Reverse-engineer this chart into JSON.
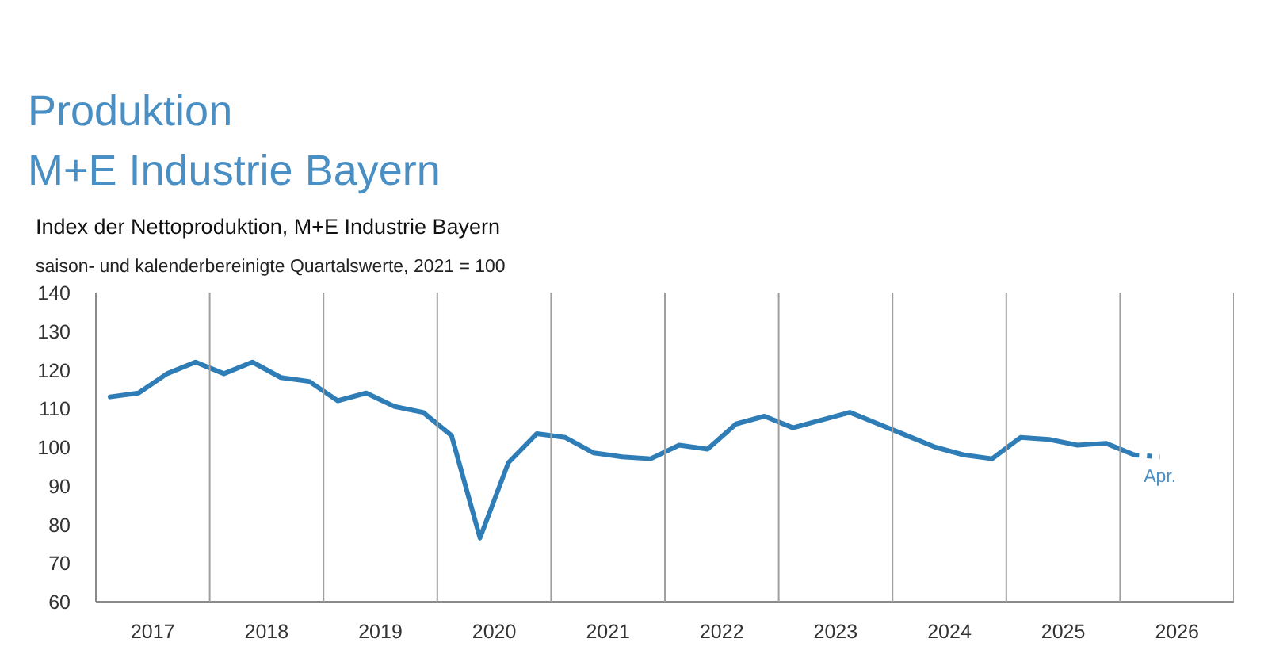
{
  "chart_data": {
    "type": "line",
    "title": "Produktion\nM+E Industrie Bayern",
    "subtitle": "Index der Nettoproduktion, M+E Industrie Bayern",
    "annotations": [
      "saison- und kalenderbereinigte Quartalswerte, 2021 = 100",
      {
        "text": "Apr.",
        "x": 2026.35,
        "y": 97.5
      }
    ],
    "xlim": [
      2017,
      2027
    ],
    "xticks": [
      {
        "value": 2017.5,
        "label": "2017"
      },
      {
        "value": 2018.5,
        "label": "2018"
      },
      {
        "value": 2019.5,
        "label": "2019"
      },
      {
        "value": 2020.5,
        "label": "2020"
      },
      {
        "value": 2021.5,
        "label": "2021"
      },
      {
        "value": 2022.5,
        "label": "2022"
      },
      {
        "value": 2023.5,
        "label": "2023"
      },
      {
        "value": 2024.5,
        "label": "2024"
      },
      {
        "value": 2025.5,
        "label": "2025"
      },
      {
        "value": 2026.5,
        "label": "2026"
      }
    ],
    "ylim": [
      60,
      140
    ],
    "yticks": [
      60,
      70,
      80,
      90,
      100,
      110,
      120,
      130,
      140
    ],
    "series": [
      {
        "color": "#2f7db6",
        "line_style": "solid",
        "x": [
          2017.125,
          2017.375,
          2017.625,
          2017.875,
          2018.125,
          2018.375,
          2018.625,
          2018.875,
          2019.125,
          2019.375,
          2019.625,
          2019.875,
          2020.125,
          2020.375,
          2020.625,
          2020.875,
          2021.125,
          2021.375,
          2021.625,
          2021.875,
          2022.125,
          2022.375,
          2022.625,
          2022.875,
          2023.125,
          2023.375,
          2023.625,
          2023.875,
          2024.125,
          2024.375,
          2024.625,
          2024.875,
          2025.125,
          2025.375,
          2025.625,
          2025.875,
          2026.125
        ],
        "values": [
          113,
          114,
          119,
          122,
          119,
          122,
          118,
          117,
          112,
          114,
          110.5,
          109,
          103,
          76.5,
          96,
          103.5,
          102.5,
          98.5,
          97.5,
          97,
          100.5,
          99.5,
          106,
          108,
          105,
          107,
          109,
          106,
          103,
          100,
          98,
          97,
          102.5,
          102,
          100.5,
          101,
          98
        ]
      },
      {
        "color": "#2f7db6",
        "line_style": "dotted",
        "x": [
          2026.125,
          2026.35
        ],
        "values": [
          98,
          97.5
        ]
      }
    ],
    "ref_lines": [
      {
        "axis": "x",
        "value": 2018,
        "color": "#a0a0a0"
      },
      {
        "axis": "x",
        "value": 2019,
        "color": "#a0a0a0"
      },
      {
        "axis": "x",
        "value": 2020,
        "color": "#a0a0a0"
      },
      {
        "axis": "x",
        "value": 2021,
        "color": "#a0a0a0"
      },
      {
        "axis": "x",
        "value": 2022,
        "color": "#a0a0a0"
      },
      {
        "axis": "x",
        "value": 2023,
        "color": "#a0a0a0"
      },
      {
        "axis": "x",
        "value": 2024,
        "color": "#a0a0a0"
      },
      {
        "axis": "x",
        "value": 2025,
        "color": "#a0a0a0"
      },
      {
        "axis": "x",
        "value": 2026,
        "color": "#a0a0a0"
      },
      {
        "axis": "x",
        "value": 2027,
        "color": "#a0a0a0"
      }
    ]
  }
}
